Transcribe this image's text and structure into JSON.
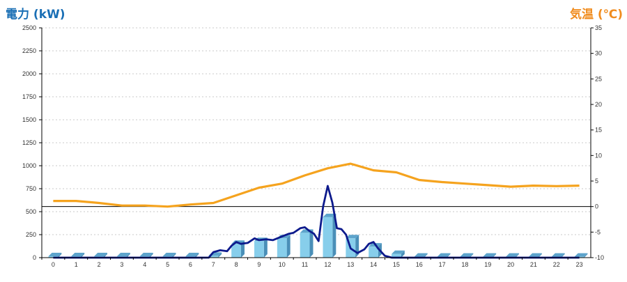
{
  "chart_data": {
    "type": "bar",
    "ylabel": "電力 (kW)",
    "y2label": "気温 (℃)",
    "categories": [
      "0",
      "1",
      "2",
      "3",
      "4",
      "5",
      "6",
      "7",
      "8",
      "9",
      "10",
      "11",
      "12",
      "13",
      "14",
      "15",
      "16",
      "17",
      "18",
      "19",
      "20",
      "21",
      "22",
      "23"
    ],
    "ylim": [
      0,
      2500
    ],
    "yticks": [
      0,
      250,
      500,
      750,
      1000,
      1250,
      1500,
      1750,
      2000,
      2250,
      2500
    ],
    "y2lim": [
      -10,
      35
    ],
    "y2ticks": [
      -10,
      -5,
      0,
      5,
      10,
      15,
      20,
      25,
      30,
      35
    ],
    "grid": true,
    "series": [
      {
        "kind": "bar-3d",
        "axis": "left",
        "color": "#87ceeb",
        "values": [
          15,
          15,
          15,
          15,
          15,
          15,
          15,
          20,
          150,
          180,
          210,
          270,
          440,
          210,
          120,
          40,
          10,
          10,
          10,
          10,
          10,
          10,
          10,
          10
        ]
      },
      {
        "kind": "line",
        "axis": "left",
        "color": "#0d1a8c",
        "x": [
          0,
          1,
          2,
          3,
          4,
          5,
          6,
          6.8,
          7,
          7.3,
          7.6,
          7.8,
          8,
          8.2,
          8.5,
          8.8,
          9,
          9.3,
          9.6,
          10,
          10.3,
          10.5,
          10.8,
          11,
          11.2,
          11.4,
          11.6,
          11.8,
          12,
          12.2,
          12.4,
          12.6,
          12.8,
          13,
          13.3,
          13.6,
          13.8,
          14,
          14.2,
          14.5,
          14.8,
          15,
          15.3,
          16,
          17,
          18,
          19,
          20,
          21,
          22,
          23
        ],
        "y": [
          0,
          0,
          0,
          0,
          0,
          0,
          0,
          0,
          60,
          80,
          70,
          130,
          170,
          150,
          160,
          210,
          190,
          200,
          190,
          230,
          260,
          270,
          320,
          330,
          290,
          260,
          180,
          560,
          780,
          600,
          320,
          310,
          250,
          100,
          50,
          90,
          150,
          170,
          100,
          20,
          0,
          0,
          0,
          0,
          0,
          0,
          0,
          0,
          0,
          0,
          0
        ]
      },
      {
        "kind": "line",
        "axis": "right",
        "color": "#f5a31e",
        "x": [
          0,
          1,
          2,
          3,
          4,
          5,
          6,
          7,
          8,
          9,
          10,
          11,
          12,
          13,
          14,
          15,
          16,
          17,
          18,
          19,
          20,
          21,
          22,
          23
        ],
        "y": [
          1.1,
          1.1,
          0.7,
          0.2,
          0.2,
          0.0,
          0.4,
          0.7,
          2.2,
          3.7,
          4.5,
          6.1,
          7.5,
          8.4,
          7.1,
          6.7,
          5.2,
          4.8,
          4.5,
          4.2,
          3.9,
          4.1,
          4.0,
          4.1
        ]
      }
    ]
  }
}
